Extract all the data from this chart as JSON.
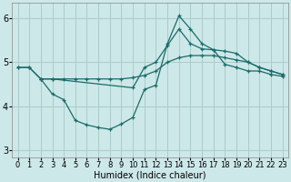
{
  "xlabel": "Humidex (Indice chaleur)",
  "bg_color": "#cde8e8",
  "grid_color": "#aacccc",
  "line_color": "#1a6b6b",
  "xlim": [
    -0.5,
    23.5
  ],
  "ylim": [
    2.85,
    6.35
  ],
  "yticks": [
    3,
    4,
    5,
    6
  ],
  "xticks": [
    0,
    1,
    2,
    3,
    4,
    5,
    6,
    7,
    8,
    9,
    10,
    11,
    12,
    13,
    14,
    15,
    16,
    17,
    18,
    19,
    20,
    21,
    22,
    23
  ],
  "line1_x": [
    0,
    1,
    2,
    3,
    4,
    5,
    6,
    7,
    8,
    9,
    10,
    11,
    12,
    13,
    14,
    15,
    16,
    17,
    18,
    19,
    20,
    21,
    22,
    23
  ],
  "line1_y": [
    4.88,
    4.88,
    4.62,
    4.62,
    4.62,
    4.62,
    4.62,
    4.62,
    4.62,
    4.62,
    4.65,
    4.7,
    4.8,
    5.0,
    5.1,
    5.15,
    5.15,
    5.15,
    5.1,
    5.05,
    5.0,
    4.88,
    4.8,
    4.72
  ],
  "line2_x": [
    0,
    1,
    2,
    3,
    10,
    11,
    12,
    13,
    14,
    15,
    16,
    17,
    18,
    19,
    20,
    21,
    22,
    23
  ],
  "line2_y": [
    4.88,
    4.88,
    4.62,
    4.62,
    4.42,
    4.88,
    5.0,
    5.38,
    5.75,
    5.42,
    5.3,
    5.28,
    5.25,
    5.2,
    5.0,
    4.88,
    4.8,
    4.72
  ],
  "line3_x": [
    2,
    3,
    4,
    5,
    6,
    7,
    8,
    9,
    10,
    11,
    12,
    13,
    14,
    15,
    16,
    17,
    18,
    19,
    20,
    21,
    22,
    23
  ],
  "line3_y": [
    4.62,
    4.28,
    4.15,
    3.68,
    3.58,
    3.52,
    3.48,
    3.6,
    3.75,
    4.38,
    4.48,
    5.42,
    6.05,
    5.75,
    5.42,
    5.28,
    4.95,
    4.88,
    4.8,
    4.8,
    4.72,
    4.68
  ]
}
